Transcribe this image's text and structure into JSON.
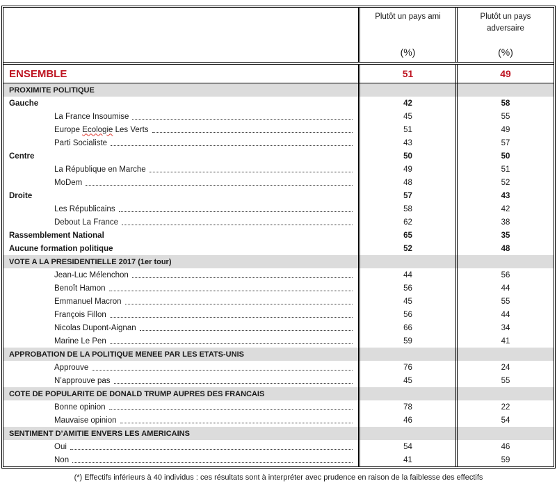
{
  "colors": {
    "accent_red": "#be1522",
    "section_bg": "#dcdcdc",
    "border": "#000000",
    "spellcheck_red": "#e03a30"
  },
  "header": {
    "col_ami": {
      "title": "Plutôt un pays ami",
      "unit": "(%)"
    },
    "col_adversaire": {
      "title": "Plutôt un pays adversaire",
      "unit": "(%)"
    }
  },
  "ensemble": {
    "label": "ENSEMBLE",
    "ami": "51",
    "adversaire": "49"
  },
  "rows": [
    {
      "type": "section",
      "label": "PROXIMITE POLITIQUE"
    },
    {
      "type": "group",
      "label": "Gauche",
      "ami": "42",
      "adversaire": "58"
    },
    {
      "type": "item",
      "label": "La France Insoumise",
      "ami": "45",
      "adversaire": "55"
    },
    {
      "type": "item",
      "label": "Europe Ecologie Les Verts",
      "wavy": "Ecologie",
      "ami": "51",
      "adversaire": "49"
    },
    {
      "type": "item",
      "label": "Parti Socialiste",
      "ami": "43",
      "adversaire": "57"
    },
    {
      "type": "group",
      "label": "Centre",
      "ami": "50",
      "adversaire": "50"
    },
    {
      "type": "item",
      "label": "La République en Marche",
      "ami": "49",
      "adversaire": "51"
    },
    {
      "type": "item",
      "label": "MoDem",
      "ami": "48",
      "adversaire": "52"
    },
    {
      "type": "group",
      "label": "Droite",
      "ami": "57",
      "adversaire": "43"
    },
    {
      "type": "item",
      "label": "Les Républicains",
      "ami": "58",
      "adversaire": "42"
    },
    {
      "type": "item",
      "label": "Debout La France",
      "ami": "62",
      "adversaire": "38"
    },
    {
      "type": "group",
      "label": "Rassemblement National",
      "ami": "65",
      "adversaire": "35"
    },
    {
      "type": "group",
      "label": "Aucune formation politique",
      "ami": "52",
      "adversaire": "48"
    },
    {
      "type": "section",
      "label": "VOTE A LA PRESIDENTIELLE 2017 (1er tour)"
    },
    {
      "type": "item",
      "label": "Jean-Luc Mélenchon",
      "ami": "44",
      "adversaire": "56"
    },
    {
      "type": "item",
      "label": "Benoît Hamon",
      "ami": "56",
      "adversaire": "44"
    },
    {
      "type": "item",
      "label": "Emmanuel Macron",
      "ami": "45",
      "adversaire": "55"
    },
    {
      "type": "item",
      "label": "François Fillon",
      "ami": "56",
      "adversaire": "44"
    },
    {
      "type": "item",
      "label": "Nicolas Dupont-Aignan",
      "ami": "66",
      "adversaire": "34"
    },
    {
      "type": "item",
      "label": "Marine Le Pen",
      "ami": "59",
      "adversaire": "41"
    },
    {
      "type": "section",
      "label": "APPROBATION DE LA POLITIQUE MENEE PAR LES ETATS-UNIS"
    },
    {
      "type": "item",
      "label": "Approuve",
      "ami": "76",
      "adversaire": "24"
    },
    {
      "type": "item",
      "label": "N’approuve pas",
      "ami": "45",
      "adversaire": "55"
    },
    {
      "type": "section",
      "label": "COTE DE POPULARITE DE DONALD TRUMP AUPRES DES FRANCAIS"
    },
    {
      "type": "item",
      "label": "Bonne opinion",
      "ami": "78",
      "adversaire": "22"
    },
    {
      "type": "item",
      "label": "Mauvaise opinion",
      "ami": "46",
      "adversaire": "54"
    },
    {
      "type": "section",
      "label": "SENTIMENT D’AMITIE ENVERS LES AMERICAINS"
    },
    {
      "type": "item",
      "label": "Oui",
      "ami": "54",
      "adversaire": "46"
    },
    {
      "type": "item",
      "label": "Non",
      "ami": "41",
      "adversaire": "59"
    }
  ],
  "footnote": "(*) Effectifs inférieurs à 40 individus : ces résultats sont à interpréter avec prudence en raison de la faiblesse des effectifs"
}
